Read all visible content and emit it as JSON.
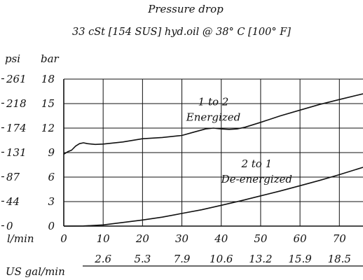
{
  "chart_data": {
    "type": "line",
    "title": "Pressure   drop",
    "subtitle": "33 cSt [154 SUS] hyd.oil @ 38° C [100° F]",
    "xlabel": "l/min",
    "x2label": "US gal/min",
    "y_left_label": "psi",
    "y_right_label": "bar",
    "xlim": [
      0,
      76
    ],
    "ylim": [
      0,
      18
    ],
    "grid": true,
    "x_ticks": [
      0,
      10,
      20,
      30,
      40,
      50,
      60,
      70
    ],
    "x_tick_labels": [
      "0",
      "10",
      "20",
      "30",
      "40",
      "50",
      "60",
      "70"
    ],
    "x2_ticks": [
      10,
      20,
      30,
      40,
      50,
      60,
      70
    ],
    "x2_tick_labels": [
      "2.6",
      "5.3",
      "7.9",
      "10.6",
      "13.2",
      "15.9",
      "18.5"
    ],
    "y_ticks": [
      0,
      3,
      6,
      9,
      12,
      15,
      18
    ],
    "y_tick_labels_bar": [
      "0",
      "3",
      "6",
      "9",
      "12",
      "15",
      "18"
    ],
    "y_tick_labels_psi": [
      "0",
      "44",
      "87",
      "131",
      "174",
      "218",
      "261"
    ],
    "series": [
      {
        "name": "1 to 2 Energized",
        "label_lines": [
          "1 to 2",
          "Energized"
        ],
        "label_at": [
          38,
          14.8
        ],
        "x": [
          0,
          1,
          2,
          3,
          4,
          5,
          6,
          8,
          10,
          15,
          20,
          25,
          30,
          33,
          36,
          38,
          40,
          42,
          44,
          46,
          50,
          55,
          60,
          65,
          70,
          76
        ],
        "y": [
          8.8,
          9.1,
          9.3,
          9.8,
          10.1,
          10.2,
          10.1,
          10.0,
          10.05,
          10.3,
          10.7,
          10.85,
          11.1,
          11.5,
          11.9,
          12.0,
          11.9,
          11.85,
          11.9,
          12.1,
          12.7,
          13.5,
          14.2,
          14.9,
          15.5,
          16.2
        ]
      },
      {
        "name": "2 to 1 De-energized",
        "label_lines": [
          "2 to 1",
          "De-energized"
        ],
        "label_at": [
          49,
          7.2
        ],
        "x": [
          0,
          5,
          10,
          15,
          20,
          25,
          30,
          35,
          40,
          45,
          50,
          55,
          60,
          65,
          70,
          76
        ],
        "y": [
          0,
          0.02,
          0.15,
          0.45,
          0.75,
          1.1,
          1.55,
          2.0,
          2.55,
          3.1,
          3.7,
          4.3,
          4.95,
          5.6,
          6.3,
          7.2
        ]
      }
    ]
  }
}
